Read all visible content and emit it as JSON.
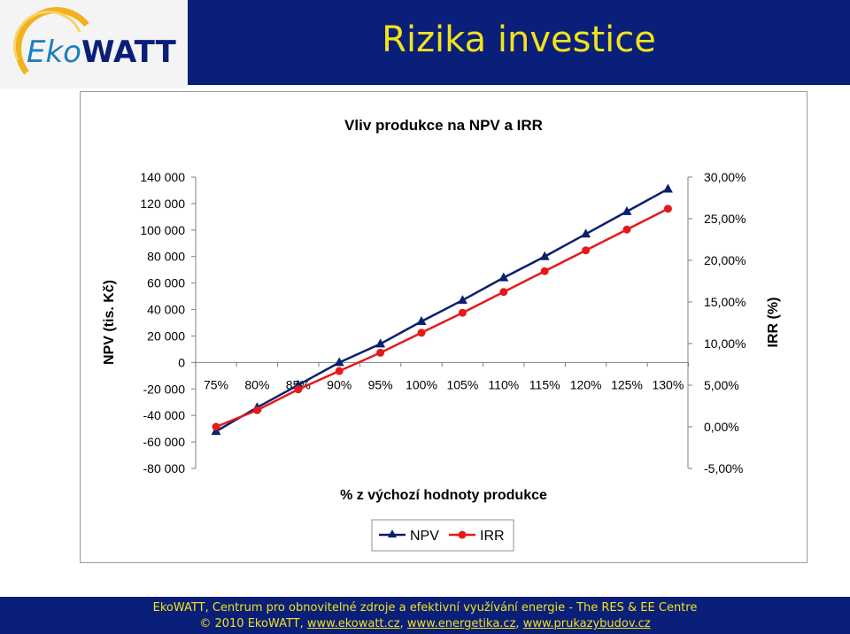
{
  "header": {
    "logo_text": "EkoWATT",
    "slide_title": "Rizika investice"
  },
  "footer": {
    "line1": "EkoWATT, Centrum pro obnovitelné zdroje a efektivní využívání energie - The RES & EE Centre",
    "line2_prefix": "© 2010 EkoWATT, ",
    "links": [
      "www.ekowatt.cz",
      "www.energetika.cz",
      "www.prukazybudov.cz"
    ]
  },
  "colors": {
    "title_bar": "#0a1f7a",
    "title_text": "#f2e21b",
    "npv_series": "#0a1f6e",
    "irr_series": "#e31a1c"
  },
  "chart_data": {
    "type": "line",
    "title": "Vliv produkce na NPV a IRR",
    "xlabel": "% z výchozí hodnoty produkce",
    "ylabel": "NPV (tis. Kč)",
    "y2label": "IRR (%)",
    "categories": [
      "75%",
      "80%",
      "85%",
      "90%",
      "95%",
      "100%",
      "105%",
      "110%",
      "115%",
      "120%",
      "125%",
      "130%"
    ],
    "ylim": [
      -80000,
      140000
    ],
    "y_ticks": [
      "140 000",
      "120 000",
      "100 000",
      "80 000",
      "60 000",
      "40 000",
      "20 000",
      "0",
      "-20 000",
      "-40 000",
      "-60 000",
      "-80 000"
    ],
    "y2lim": [
      -5,
      30
    ],
    "y2_ticks": [
      "30,00%",
      "25,00%",
      "20,00%",
      "15,00%",
      "10,00%",
      "5,00%",
      "0,00%",
      "-5,00%"
    ],
    "legend_position": "bottom",
    "series": [
      {
        "name": "NPV",
        "axis": "left",
        "marker": "triangle",
        "values": [
          -52000,
          -34000,
          -17000,
          0,
          14000,
          31000,
          47000,
          64000,
          80000,
          97000,
          114000,
          131000
        ]
      },
      {
        "name": "IRR",
        "axis": "right",
        "marker": "circle",
        "values": [
          0.0,
          2.0,
          4.5,
          6.7,
          8.9,
          11.3,
          13.7,
          16.2,
          18.7,
          21.2,
          23.7,
          26.2
        ]
      }
    ]
  }
}
